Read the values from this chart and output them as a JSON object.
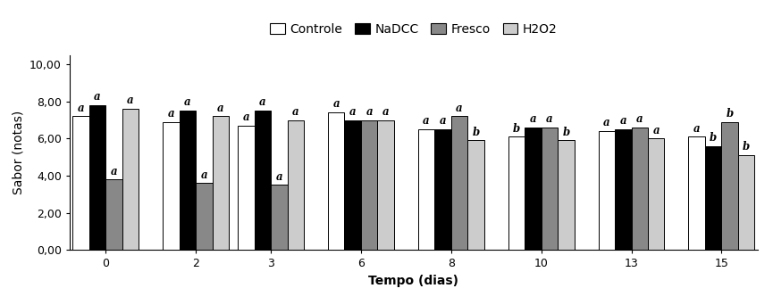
{
  "time_points": [
    0,
    2,
    3,
    6,
    8,
    10,
    13,
    15
  ],
  "series": {
    "Controle": {
      "values": [
        7.2,
        6.9,
        6.7,
        7.4,
        6.5,
        6.1,
        6.4,
        6.1
      ],
      "color": "#ffffff",
      "edgecolor": "#000000"
    },
    "NaDCC": {
      "values": [
        7.8,
        7.5,
        7.5,
        7.0,
        6.5,
        6.6,
        6.5,
        5.6
      ],
      "color": "#000000",
      "edgecolor": "#000000"
    },
    "Fresco": {
      "values": [
        3.8,
        3.6,
        3.5,
        7.0,
        7.2,
        6.6,
        6.6,
        6.9
      ],
      "color": "#888888",
      "edgecolor": "#000000"
    },
    "H2O2": {
      "values": [
        7.6,
        7.2,
        7.0,
        7.0,
        5.9,
        5.9,
        6.0,
        5.1
      ],
      "color": "#ffffff",
      "edgecolor": "#000000"
    }
  },
  "annotations": {
    "Controle": [
      "a",
      "a",
      "a",
      "a",
      "a",
      "b",
      "a",
      "a"
    ],
    "NaDCC": [
      "a",
      "a",
      "a",
      "a",
      "a",
      "a",
      "a",
      "b"
    ],
    "Fresco": [
      "a",
      "a",
      "a",
      "a",
      "a",
      "a",
      "a",
      "b"
    ],
    "H2O2": [
      "a",
      "a",
      "a",
      "a",
      "b",
      "b",
      "a",
      "b"
    ]
  },
  "series_order": [
    "Controle",
    "NaDCC",
    "Fresco",
    "H2O2"
  ],
  "xlabel": "Tempo (dias)",
  "ylabel": "Sabor (notas)",
  "ylim": [
    0,
    10.5
  ],
  "yticks": [
    0.0,
    2.0,
    4.0,
    6.0,
    8.0,
    10.0
  ],
  "ytick_labels": [
    "0,00",
    "2,00",
    "4,00",
    "6,00",
    "8,00",
    "10,00"
  ],
  "bar_width": 0.55,
  "group_positions": [
    0,
    3.0,
    5.5,
    8.5,
    11.5,
    14.5,
    17.5,
    20.5
  ],
  "legend_labels": [
    "Controle",
    "NaDCC",
    "Fresco",
    "H2O2"
  ],
  "legend_colors": [
    "#ffffff",
    "#000000",
    "#888888",
    "#ffffff"
  ],
  "annotation_fontsize": 8.5,
  "axis_fontsize": 10,
  "legend_fontsize": 10
}
